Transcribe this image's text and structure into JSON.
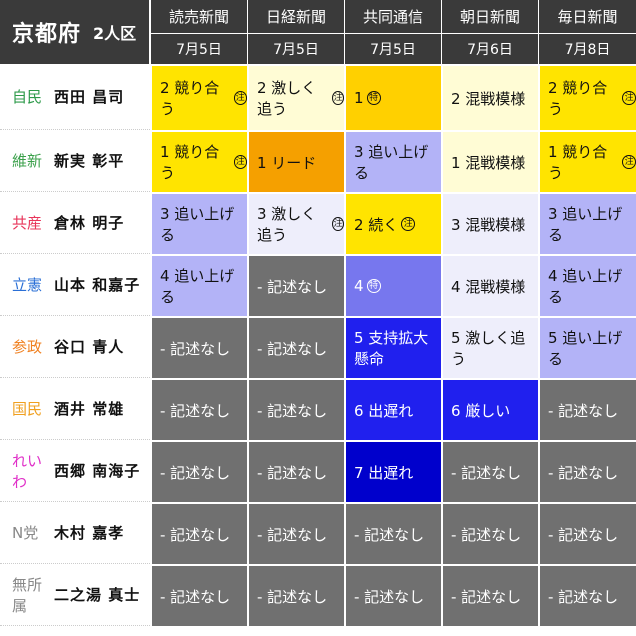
{
  "header": {
    "title": "京都府",
    "subtitle": "2人区"
  },
  "columns": [
    {
      "paper": "読売新聞",
      "date": "7月5日"
    },
    {
      "paper": "日経新聞",
      "date": "7月5日"
    },
    {
      "paper": "共同通信",
      "date": "7月5日"
    },
    {
      "paper": "朝日新聞",
      "date": "7月6日"
    },
    {
      "paper": "毎日新聞",
      "date": "7月8日"
    }
  ],
  "colors": {
    "header_bg": "#3a3a3a",
    "yellow": "#ffe400",
    "light_yellow": "#fffcd5",
    "orange_yellow": "#ffd000",
    "orange": "#f5a000",
    "periwinkle": "#b3b3f7",
    "pale_lavender": "#eeeefb",
    "medium_blue": "#7777ee",
    "blue": "#2020ee",
    "deep_blue": "#0000cc",
    "gray": "#707070"
  },
  "rows": [
    {
      "party": "自民",
      "party_color": "#2e9a4a",
      "name": "西田 昌司",
      "cells": [
        {
          "text": "2 競り合う",
          "mark": "注",
          "bg": "#ffe400",
          "fg": "#111111"
        },
        {
          "text": "2 激しく追う",
          "mark": "注",
          "bg": "#fffcd5",
          "fg": "#111111"
        },
        {
          "text": "1",
          "mark": "特",
          "bg": "#ffd000",
          "fg": "#111111"
        },
        {
          "text": "2 混戦模様",
          "mark": "",
          "bg": "#fffcd5",
          "fg": "#111111"
        },
        {
          "text": "2 競り合う",
          "mark": "注",
          "bg": "#ffe400",
          "fg": "#111111"
        }
      ]
    },
    {
      "party": "維新",
      "party_color": "#3aa04a",
      "name": "新実 彰平",
      "cells": [
        {
          "text": "1 競り合う",
          "mark": "注",
          "bg": "#ffe400",
          "fg": "#111111"
        },
        {
          "text": "1 リード",
          "mark": "",
          "bg": "#f5a000",
          "fg": "#111111"
        },
        {
          "text": "3 追い上げる",
          "mark": "",
          "bg": "#b3b3f7",
          "fg": "#111111"
        },
        {
          "text": "1 混戦模様",
          "mark": "",
          "bg": "#fffcd5",
          "fg": "#111111"
        },
        {
          "text": "1 競り合う",
          "mark": "注",
          "bg": "#ffe400",
          "fg": "#111111"
        }
      ]
    },
    {
      "party": "共産",
      "party_color": "#e8345a",
      "name": "倉林 明子",
      "cells": [
        {
          "text": "3 追い上げる",
          "mark": "",
          "bg": "#b3b3f7",
          "fg": "#111111"
        },
        {
          "text": "3 激しく追う",
          "mark": "注",
          "bg": "#eeeefb",
          "fg": "#111111"
        },
        {
          "text": "2 続く",
          "mark": "注",
          "bg": "#ffe400",
          "fg": "#111111"
        },
        {
          "text": "3 混戦模様",
          "mark": "",
          "bg": "#eeeefb",
          "fg": "#111111"
        },
        {
          "text": "3 追い上げる",
          "mark": "",
          "bg": "#b3b3f7",
          "fg": "#111111"
        }
      ]
    },
    {
      "party": "立憲",
      "party_color": "#2a6fd6",
      "name": "山本 和嘉子",
      "cells": [
        {
          "text": "4 追い上げる",
          "mark": "",
          "bg": "#b3b3f7",
          "fg": "#111111"
        },
        {
          "text": "- 記述なし",
          "mark": "",
          "bg": "#707070",
          "fg": "#ffffff"
        },
        {
          "text": "4",
          "mark": "特",
          "bg": "#7777ee",
          "fg": "#ffffff"
        },
        {
          "text": "4 混戦模様",
          "mark": "",
          "bg": "#eeeefb",
          "fg": "#111111"
        },
        {
          "text": "4 追い上げる",
          "mark": "",
          "bg": "#b3b3f7",
          "fg": "#111111"
        }
      ]
    },
    {
      "party": "参政",
      "party_color": "#f08020",
      "name": "谷口 青人",
      "cells": [
        {
          "text": "- 記述なし",
          "mark": "",
          "bg": "#707070",
          "fg": "#ffffff"
        },
        {
          "text": "- 記述なし",
          "mark": "",
          "bg": "#707070",
          "fg": "#ffffff"
        },
        {
          "text": "5 支持拡大懸命",
          "mark": "",
          "bg": "#2020ee",
          "fg": "#ffffff"
        },
        {
          "text": "5 激しく追う",
          "mark": "",
          "bg": "#eeeefb",
          "fg": "#111111"
        },
        {
          "text": "5 追い上げる",
          "mark": "",
          "bg": "#b3b3f7",
          "fg": "#111111"
        }
      ]
    },
    {
      "party": "国民",
      "party_color": "#f0a020",
      "name": "酒井 常雄",
      "cells": [
        {
          "text": "- 記述なし",
          "mark": "",
          "bg": "#707070",
          "fg": "#ffffff"
        },
        {
          "text": "- 記述なし",
          "mark": "",
          "bg": "#707070",
          "fg": "#ffffff"
        },
        {
          "text": "6 出遅れ",
          "mark": "",
          "bg": "#2020ee",
          "fg": "#ffffff"
        },
        {
          "text": "6 厳しい",
          "mark": "",
          "bg": "#2020ee",
          "fg": "#ffffff"
        },
        {
          "text": "- 記述なし",
          "mark": "",
          "bg": "#707070",
          "fg": "#ffffff"
        }
      ]
    },
    {
      "party": "れいわ",
      "party_color": "#e030c8",
      "name": "西郷 南海子",
      "cells": [
        {
          "text": "- 記述なし",
          "mark": "",
          "bg": "#707070",
          "fg": "#ffffff"
        },
        {
          "text": "- 記述なし",
          "mark": "",
          "bg": "#707070",
          "fg": "#ffffff"
        },
        {
          "text": "7 出遅れ",
          "mark": "",
          "bg": "#0000cc",
          "fg": "#ffffff"
        },
        {
          "text": "- 記述なし",
          "mark": "",
          "bg": "#707070",
          "fg": "#ffffff"
        },
        {
          "text": "- 記述なし",
          "mark": "",
          "bg": "#707070",
          "fg": "#ffffff"
        }
      ]
    },
    {
      "party": "N党",
      "party_color": "#888888",
      "name": "木村 嘉孝",
      "cells": [
        {
          "text": "- 記述なし",
          "mark": "",
          "bg": "#707070",
          "fg": "#ffffff"
        },
        {
          "text": "- 記述なし",
          "mark": "",
          "bg": "#707070",
          "fg": "#ffffff"
        },
        {
          "text": "- 記述なし",
          "mark": "",
          "bg": "#707070",
          "fg": "#ffffff"
        },
        {
          "text": "- 記述なし",
          "mark": "",
          "bg": "#707070",
          "fg": "#ffffff"
        },
        {
          "text": "- 記述なし",
          "mark": "",
          "bg": "#707070",
          "fg": "#ffffff"
        }
      ]
    },
    {
      "party": "無所属",
      "party_color": "#888888",
      "name": "二之湯 真士",
      "cells": [
        {
          "text": "- 記述なし",
          "mark": "",
          "bg": "#707070",
          "fg": "#ffffff"
        },
        {
          "text": "- 記述なし",
          "mark": "",
          "bg": "#707070",
          "fg": "#ffffff"
        },
        {
          "text": "- 記述なし",
          "mark": "",
          "bg": "#707070",
          "fg": "#ffffff"
        },
        {
          "text": "- 記述なし",
          "mark": "",
          "bg": "#707070",
          "fg": "#ffffff"
        },
        {
          "text": "- 記述なし",
          "mark": "",
          "bg": "#707070",
          "fg": "#ffffff"
        }
      ]
    }
  ]
}
